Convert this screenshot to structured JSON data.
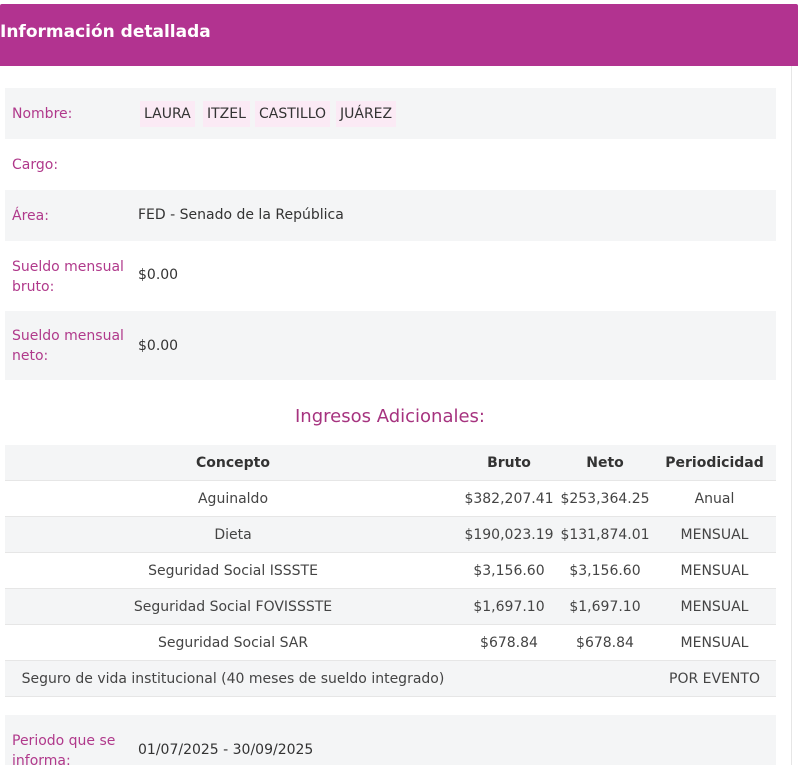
{
  "header": {
    "title": "Información detallada"
  },
  "details": {
    "nombre_label": "Nombre:",
    "nombre_parts": [
      "LAURA",
      "ITZEL",
      "CASTILLO",
      "JUÁREZ"
    ],
    "cargo_label": "Cargo:",
    "cargo_value": "",
    "area_label": "Área:",
    "area_value": "FED - Senado de la República",
    "bruto_label": "Sueldo mensual bruto:",
    "bruto_value": "$0.00",
    "neto_label": "Sueldo mensual neto:",
    "neto_value": "$0.00"
  },
  "ingresos": {
    "title": "Ingresos Adicionales:",
    "headers": [
      "Concepto",
      "Bruto",
      "Neto",
      "Periodicidad"
    ],
    "rows": [
      [
        "Aguinaldo",
        "$382,207.41",
        "$253,364.25",
        "Anual"
      ],
      [
        "Dieta",
        "$190,023.19",
        "$131,874.01",
        "MENSUAL"
      ],
      [
        "Seguridad Social ISSSTE",
        "$3,156.60",
        "$3,156.60",
        "MENSUAL"
      ],
      [
        "Seguridad Social FOVISSSTE",
        "$1,697.10",
        "$1,697.10",
        "MENSUAL"
      ],
      [
        "Seguridad Social SAR",
        "$678.84",
        "$678.84",
        "MENSUAL"
      ],
      [
        "Seguro de vida institucional (40 meses de sueldo integrado)",
        "",
        "",
        "POR EVENTO"
      ]
    ]
  },
  "periodo": {
    "label": "Periodo que se informa:",
    "value": "01/07/2025 - 30/09/2025"
  }
}
